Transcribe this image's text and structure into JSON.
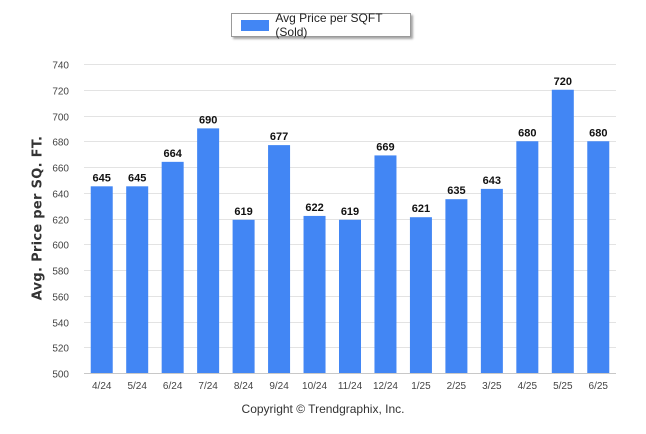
{
  "chart_data": {
    "type": "bar",
    "categories": [
      "4/24",
      "5/24",
      "6/24",
      "7/24",
      "8/24",
      "9/24",
      "10/24",
      "11/24",
      "12/24",
      "1/25",
      "2/25",
      "3/25",
      "4/25",
      "5/25",
      "6/25"
    ],
    "series": [
      {
        "name": "Avg Price per SQFT (Sold)",
        "values": [
          645,
          645,
          664,
          690,
          619,
          677,
          622,
          619,
          669,
          621,
          635,
          643,
          680,
          720,
          680
        ]
      }
    ],
    "ylabel": "Avg. Price per SQ. FT.",
    "xlabel": "",
    "ylim": [
      500,
      740
    ],
    "yticks": [
      500,
      520,
      540,
      560,
      580,
      600,
      620,
      640,
      660,
      680,
      700,
      720,
      740
    ],
    "grid": true,
    "legend_position": "top-center",
    "bar_color": "#4286f4"
  },
  "footer": {
    "copyright": "Copyright © Trendgraphix, Inc."
  }
}
